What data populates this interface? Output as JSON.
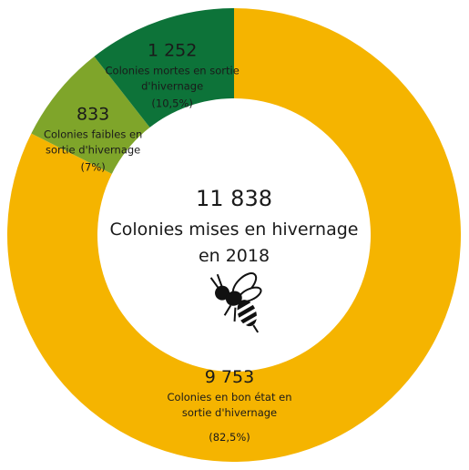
{
  "chart_data": {
    "type": "pie",
    "variant": "donut",
    "start_angle_deg": 0,
    "slices": [
      {
        "value": 9753,
        "value_label": "9 753",
        "desc": [
          "Colonies en bon état en",
          "sortie d'hivernage"
        ],
        "percent_label": "(82,5%)",
        "color": "#F5B400"
      },
      {
        "value": 833,
        "value_label": "833",
        "desc": [
          "Colonies faibles en",
          "sortie d'hivernage"
        ],
        "percent_label": "(7%)",
        "color": "#7FA52A"
      },
      {
        "value": 1252,
        "value_label": "1 252",
        "desc": [
          "Colonies mortes en sortie",
          "d'hivernage"
        ],
        "percent_label": "(10,5%)",
        "color": "#0D7339"
      }
    ],
    "center": {
      "total": "11 838",
      "line1": "Colonies mises en hivernage",
      "line2": "en 2018"
    }
  },
  "icons": {
    "center_icon": "bee-icon"
  }
}
